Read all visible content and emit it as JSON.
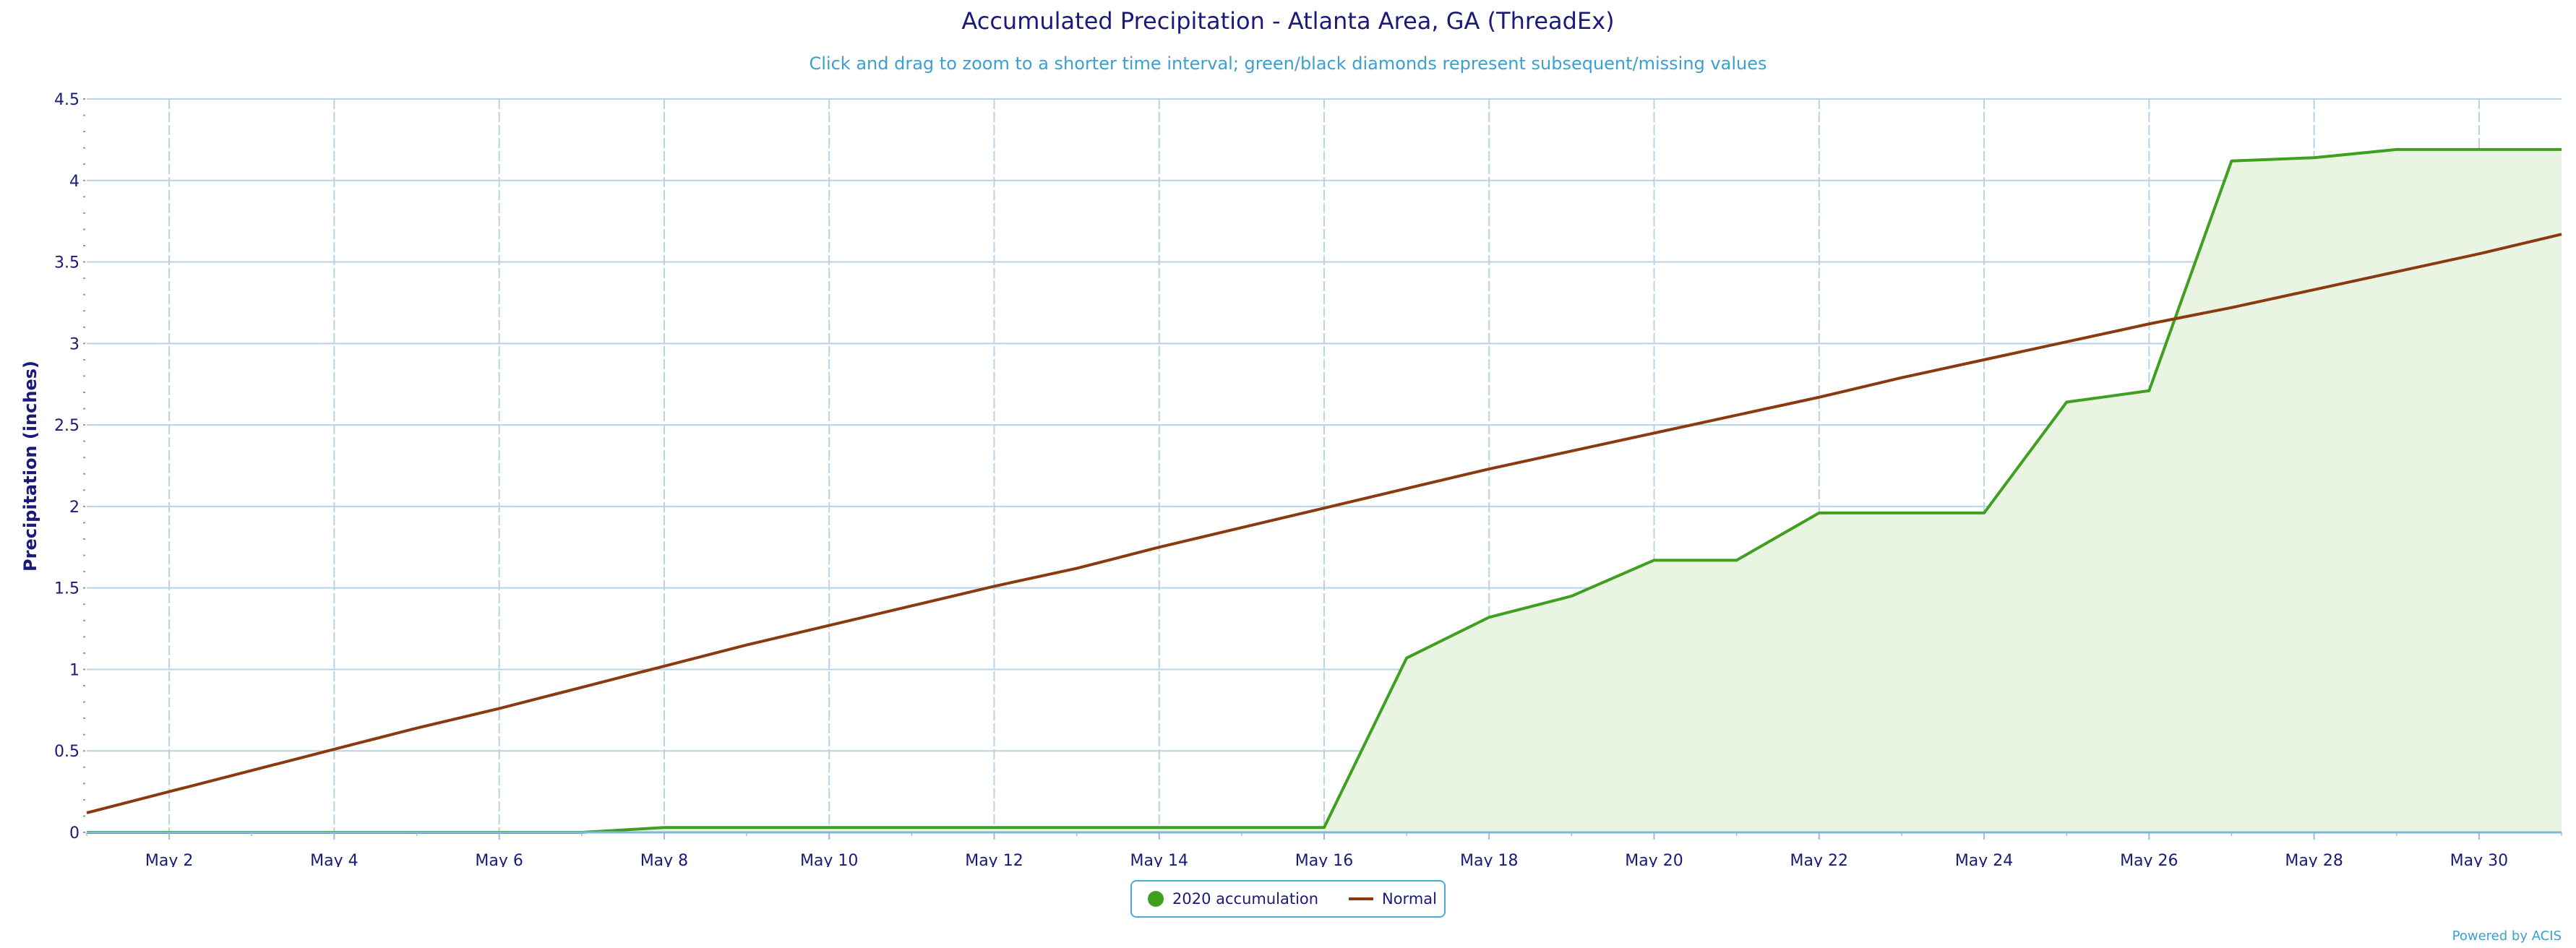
{
  "chart_data": {
    "type": "area",
    "title": "Accumulated Precipitation - Atlanta Area, GA (ThreadEx)",
    "subtitle": "Click and drag to zoom to a shorter time interval; green/black diamonds represent subsequent/missing values",
    "ylabel": "Precipitation (inches)",
    "xlabel": "",
    "ylim": [
      0,
      4.5
    ],
    "xlim": [
      1,
      31
    ],
    "y_ticks": [
      "0",
      "0.5",
      "1",
      "1.5",
      "2",
      "2.5",
      "3",
      "3.5",
      "4",
      "4.5"
    ],
    "x_ticks": [
      {
        "day": 2,
        "label": "May 2"
      },
      {
        "day": 4,
        "label": "May 4"
      },
      {
        "day": 6,
        "label": "May 6"
      },
      {
        "day": 8,
        "label": "May 8"
      },
      {
        "day": 10,
        "label": "May 10"
      },
      {
        "day": 12,
        "label": "May 12"
      },
      {
        "day": 14,
        "label": "May 14"
      },
      {
        "day": 16,
        "label": "May 16"
      },
      {
        "day": 18,
        "label": "May 18"
      },
      {
        "day": 20,
        "label": "May 20"
      },
      {
        "day": 22,
        "label": "May 22"
      },
      {
        "day": 24,
        "label": "May 24"
      },
      {
        "day": 26,
        "label": "May 26"
      },
      {
        "day": 28,
        "label": "May 28"
      },
      {
        "day": 30,
        "label": "May 30"
      }
    ],
    "grid": true,
    "legend_position": "bottom-center",
    "series": [
      {
        "name": "2020 accumulation",
        "color": "#3f9f1f",
        "fill": "#eaf4e2",
        "x": [
          1,
          2,
          3,
          4,
          5,
          6,
          7,
          8,
          9,
          10,
          11,
          12,
          13,
          14,
          15,
          16,
          17,
          18,
          19,
          20,
          21,
          22,
          23,
          24,
          25,
          26,
          27,
          28,
          29,
          30,
          31
        ],
        "values": [
          0,
          0,
          0,
          0,
          0,
          0,
          0,
          0.03,
          0.03,
          0.03,
          0.03,
          0.03,
          0.03,
          0.03,
          0.03,
          0.03,
          1.07,
          1.32,
          1.45,
          1.67,
          1.67,
          1.96,
          1.96,
          1.96,
          2.64,
          2.71,
          4.12,
          4.14,
          4.19,
          4.19,
          4.19
        ]
      },
      {
        "name": "Normal",
        "color": "#8b3a0f",
        "x": [
          1,
          2,
          3,
          4,
          5,
          6,
          7,
          8,
          9,
          10,
          11,
          12,
          13,
          14,
          15,
          16,
          17,
          18,
          19,
          20,
          21,
          22,
          23,
          24,
          25,
          26,
          27,
          28,
          29,
          30,
          31
        ],
        "values": [
          0.12,
          0.25,
          0.38,
          0.51,
          0.64,
          0.76,
          0.89,
          1.02,
          1.15,
          1.27,
          1.39,
          1.51,
          1.62,
          1.75,
          1.87,
          1.99,
          2.11,
          2.23,
          2.34,
          2.45,
          2.56,
          2.67,
          2.79,
          2.9,
          3.01,
          3.12,
          3.22,
          3.33,
          3.44,
          3.55,
          3.67
        ]
      }
    ]
  },
  "credit": "Powered by ACIS"
}
